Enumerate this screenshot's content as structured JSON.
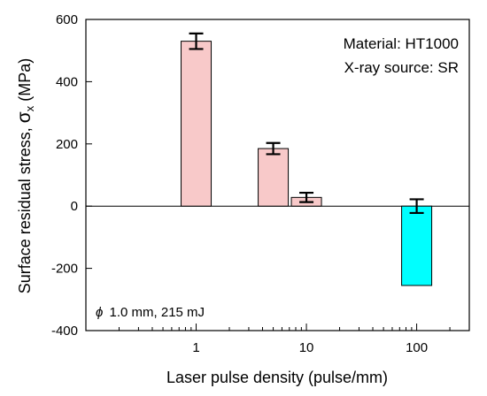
{
  "chart_data": {
    "type": "bar",
    "x_scale": "log",
    "xlabel": "Laser pulse density (pulse/mm)",
    "ylabel_prefix": "Surface residual stress, ",
    "ylabel_symbol": "σ",
    "ylabel_sub": "x",
    "ylabel_suffix": " (MPa)",
    "xlim": [
      0.1,
      300
    ],
    "ylim": [
      -400,
      600
    ],
    "y_ticks": [
      600,
      400,
      200,
      0,
      -200,
      -400
    ],
    "x_tick_labels": [
      {
        "value": 1,
        "label": "1"
      },
      {
        "value": 10,
        "label": "10"
      },
      {
        "value": 100,
        "label": "100"
      }
    ],
    "zero_line": true,
    "grid": false,
    "bars": [
      {
        "x": 1,
        "value": 530,
        "error": 25,
        "color": "#f8c9c9"
      },
      {
        "x": 5,
        "value": 185,
        "error": 18,
        "color": "#f8c9c9"
      },
      {
        "x": 10,
        "value": 28,
        "error": 15,
        "color": "#f8c9c9"
      },
      {
        "x": 100,
        "value": -255,
        "error": 22,
        "error_center": 0,
        "color": "#00ffff"
      }
    ],
    "annotations": {
      "material": "Material: HT1000",
      "source": "X-ray source: SR",
      "condition_symbol": "ϕ",
      "condition": "1.0 mm, 215 mJ"
    }
  }
}
